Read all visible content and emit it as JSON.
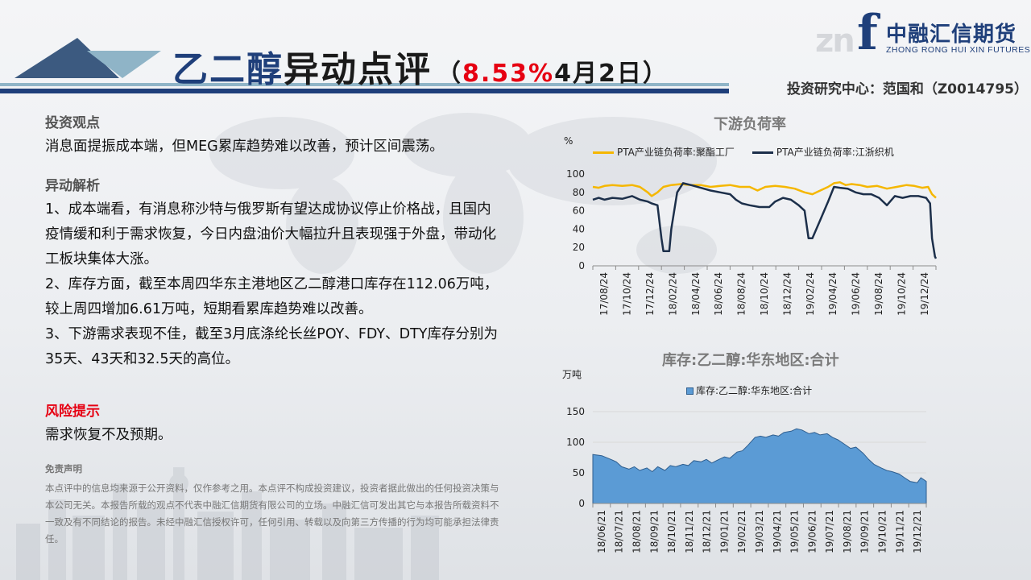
{
  "header": {
    "title_part1": "乙二醇",
    "title_part2": "异动点评",
    "paren_open": "（",
    "pct": "8.53%",
    "date": " 4月2日）",
    "author": "投资研究中心：范国和（Z0014795）",
    "colors": {
      "accent": "#1f3f7a",
      "red": "#e60012",
      "light_blue": "#8fb4c7"
    }
  },
  "logo": {
    "watermark": "zn",
    "mark": "f",
    "cn": "中融汇信期货",
    "en": "ZHONG RONG HUI XIN FUTURES"
  },
  "left": {
    "view_heading": "投资观点",
    "view_text": "消息面提振成本端，但MEG累库趋势难以改善，预计区间震荡。",
    "analysis_heading": "异动解析",
    "analysis": [
      "1、成本端看，有消息称沙特与俄罗斯有望达成协议停止价格战，且国内疫情缓和利于需求恢复，今日内盘油价大幅拉升且表现强于外盘，带动化工板块集体大涨。",
      "2、库存方面，截至本周四华东主港地区乙二醇港口库存在112.06万吨，较上周四增加6.61万吨，短期看累库趋势难以改善。",
      "3、下游需求表现不佳，截至3月底涤纶长丝POY、FDY、DTY库存分别为35天、43天和32.5天的高位。"
    ],
    "risk_heading": "风险提示",
    "risk_text": "需求恢复不及预期。",
    "disclaimer_heading": "免责声明",
    "disclaimer": "本点评中的信息均来源于公开资料，仅作参考之用。本点评不构成投资建议，投资者据此做出的任何投资决策与本公司无关。本报告所载的观点不代表中融汇信期货有限公司的立场。中融汇信可发出其它与本报告所载资料不一致及有不同结论的报告。未经中融汇信授权许可，任何引用、转载以及向第三方传播的行为均可能承担法律责任。"
  },
  "chart_data": [
    {
      "type": "line",
      "title": "下游负荷率",
      "ylabel": "%",
      "ylim": [
        0,
        100
      ],
      "yticks": [
        0,
        20,
        40,
        60,
        80,
        100
      ],
      "x_tick_labels": [
        "17/08/24",
        "17/10/24",
        "17/12/24",
        "18/02/24",
        "18/04/24",
        "18/06/24",
        "18/08/24",
        "18/10/24",
        "18/12/24",
        "19/02/24",
        "19/04/24",
        "19/06/24",
        "19/08/24",
        "19/10/24",
        "19/12/24"
      ],
      "x_range": [
        0,
        17.5
      ],
      "series": [
        {
          "name": "PTA产业链负荷率:聚酯工厂",
          "color": "#f5b700",
          "points": [
            [
              0,
              86
            ],
            [
              0.3,
              85
            ],
            [
              0.6,
              87
            ],
            [
              1,
              88
            ],
            [
              1.5,
              87
            ],
            [
              2,
              88
            ],
            [
              2.4,
              86
            ],
            [
              2.8,
              80
            ],
            [
              3,
              76
            ],
            [
              3.3,
              80
            ],
            [
              3.6,
              86
            ],
            [
              4,
              88
            ],
            [
              4.5,
              89
            ],
            [
              5,
              88
            ],
            [
              5.5,
              88
            ],
            [
              6,
              86
            ],
            [
              6.5,
              87
            ],
            [
              7,
              88
            ],
            [
              7.5,
              86
            ],
            [
              8,
              86
            ],
            [
              8.4,
              82
            ],
            [
              8.8,
              86
            ],
            [
              9.3,
              87
            ],
            [
              9.8,
              86
            ],
            [
              10.3,
              84
            ],
            [
              10.8,
              80
            ],
            [
              11.2,
              78
            ],
            [
              11.6,
              82
            ],
            [
              12,
              86
            ],
            [
              12.3,
              90
            ],
            [
              12.6,
              91
            ],
            [
              12.9,
              88
            ],
            [
              13.2,
              89
            ],
            [
              13.6,
              88
            ],
            [
              14,
              86
            ],
            [
              14.5,
              87
            ],
            [
              15,
              84
            ],
            [
              15.5,
              86
            ],
            [
              16,
              88
            ],
            [
              16.4,
              87
            ],
            [
              16.8,
              85
            ],
            [
              17.1,
              86
            ],
            [
              17.3,
              78
            ],
            [
              17.5,
              74
            ]
          ]
        },
        {
          "name": "PTA产业链负荷率:江浙织机",
          "color": "#1c2f4a",
          "points": [
            [
              0,
              72
            ],
            [
              0.3,
              74
            ],
            [
              0.6,
              72
            ],
            [
              1,
              74
            ],
            [
              1.5,
              73
            ],
            [
              2,
              76
            ],
            [
              2.4,
              72
            ],
            [
              2.8,
              70
            ],
            [
              3,
              68
            ],
            [
              3.3,
              66
            ],
            [
              3.5,
              30
            ],
            [
              3.6,
              16
            ],
            [
              3.9,
              16
            ],
            [
              4,
              40
            ],
            [
              4.3,
              80
            ],
            [
              4.6,
              90
            ],
            [
              5,
              88
            ],
            [
              5.5,
              85
            ],
            [
              6,
              82
            ],
            [
              6.5,
              80
            ],
            [
              7,
              78
            ],
            [
              7.3,
              72
            ],
            [
              7.6,
              68
            ],
            [
              8,
              66
            ],
            [
              8.5,
              64
            ],
            [
              9,
              64
            ],
            [
              9.3,
              70
            ],
            [
              9.7,
              74
            ],
            [
              10.1,
              72
            ],
            [
              10.5,
              66
            ],
            [
              10.8,
              60
            ],
            [
              11,
              30
            ],
            [
              11.2,
              30
            ],
            [
              11.6,
              50
            ],
            [
              12,
              70
            ],
            [
              12.3,
              86
            ],
            [
              12.6,
              85
            ],
            [
              13,
              84
            ],
            [
              13.4,
              80
            ],
            [
              13.8,
              78
            ],
            [
              14.2,
              78
            ],
            [
              14.6,
              74
            ],
            [
              15,
              66
            ],
            [
              15.4,
              76
            ],
            [
              15.8,
              74
            ],
            [
              16.2,
              76
            ],
            [
              16.6,
              76
            ],
            [
              17,
              74
            ],
            [
              17.2,
              68
            ],
            [
              17.3,
              30
            ],
            [
              17.45,
              10
            ],
            [
              17.5,
              8
            ]
          ]
        }
      ],
      "legend_position": "top",
      "grid": true
    },
    {
      "type": "area",
      "title": "库存:乙二醇:华东地区:合计",
      "ylabel": "万吨",
      "ylim": [
        0,
        150
      ],
      "yticks": [
        0,
        50,
        100,
        150
      ],
      "x_tick_labels": [
        "18/06/21",
        "18/07/21",
        "18/08/21",
        "18/09/21",
        "18/10/21",
        "18/11/21",
        "18/12/21",
        "19/01/21",
        "19/02/21",
        "19/03/21",
        "19/04/21",
        "19/05/21",
        "19/06/21",
        "19/07/21",
        "19/08/21",
        "19/09/21",
        "19/10/21",
        "19/11/21",
        "19/12/21"
      ],
      "x_range": [
        0,
        18.5
      ],
      "series": [
        {
          "name": "库存:乙二醇:华东地区:合计",
          "color": "#5b9bd5",
          "points": [
            [
              0,
              80
            ],
            [
              0.5,
              78
            ],
            [
              1,
              72
            ],
            [
              1.3,
              68
            ],
            [
              1.6,
              60
            ],
            [
              2,
              56
            ],
            [
              2.3,
              60
            ],
            [
              2.6,
              54
            ],
            [
              3,
              58
            ],
            [
              3.3,
              52
            ],
            [
              3.6,
              60
            ],
            [
              4,
              54
            ],
            [
              4.3,
              62
            ],
            [
              4.6,
              60
            ],
            [
              5,
              64
            ],
            [
              5.3,
              62
            ],
            [
              5.6,
              70
            ],
            [
              6,
              68
            ],
            [
              6.3,
              72
            ],
            [
              6.6,
              66
            ],
            [
              7,
              72
            ],
            [
              7.3,
              76
            ],
            [
              7.6,
              74
            ],
            [
              8,
              84
            ],
            [
              8.3,
              86
            ],
            [
              8.6,
              95
            ],
            [
              9,
              108
            ],
            [
              9.3,
              110
            ],
            [
              9.6,
              108
            ],
            [
              10,
              112
            ],
            [
              10.3,
              110
            ],
            [
              10.6,
              116
            ],
            [
              11,
              118
            ],
            [
              11.3,
              122
            ],
            [
              11.6,
              120
            ],
            [
              12,
              114
            ],
            [
              12.3,
              116
            ],
            [
              12.6,
              112
            ],
            [
              13,
              114
            ],
            [
              13.3,
              108
            ],
            [
              13.6,
              104
            ],
            [
              14,
              96
            ],
            [
              14.3,
              90
            ],
            [
              14.6,
              92
            ],
            [
              15,
              82
            ],
            [
              15.3,
              72
            ],
            [
              15.6,
              64
            ],
            [
              16,
              58
            ],
            [
              16.3,
              54
            ],
            [
              16.6,
              52
            ],
            [
              17,
              48
            ],
            [
              17.3,
              42
            ],
            [
              17.6,
              36
            ],
            [
              18,
              34
            ],
            [
              18.2,
              42
            ],
            [
              18.4,
              38
            ],
            [
              18.5,
              36
            ]
          ]
        }
      ],
      "legend_position": "top",
      "grid": true
    }
  ]
}
